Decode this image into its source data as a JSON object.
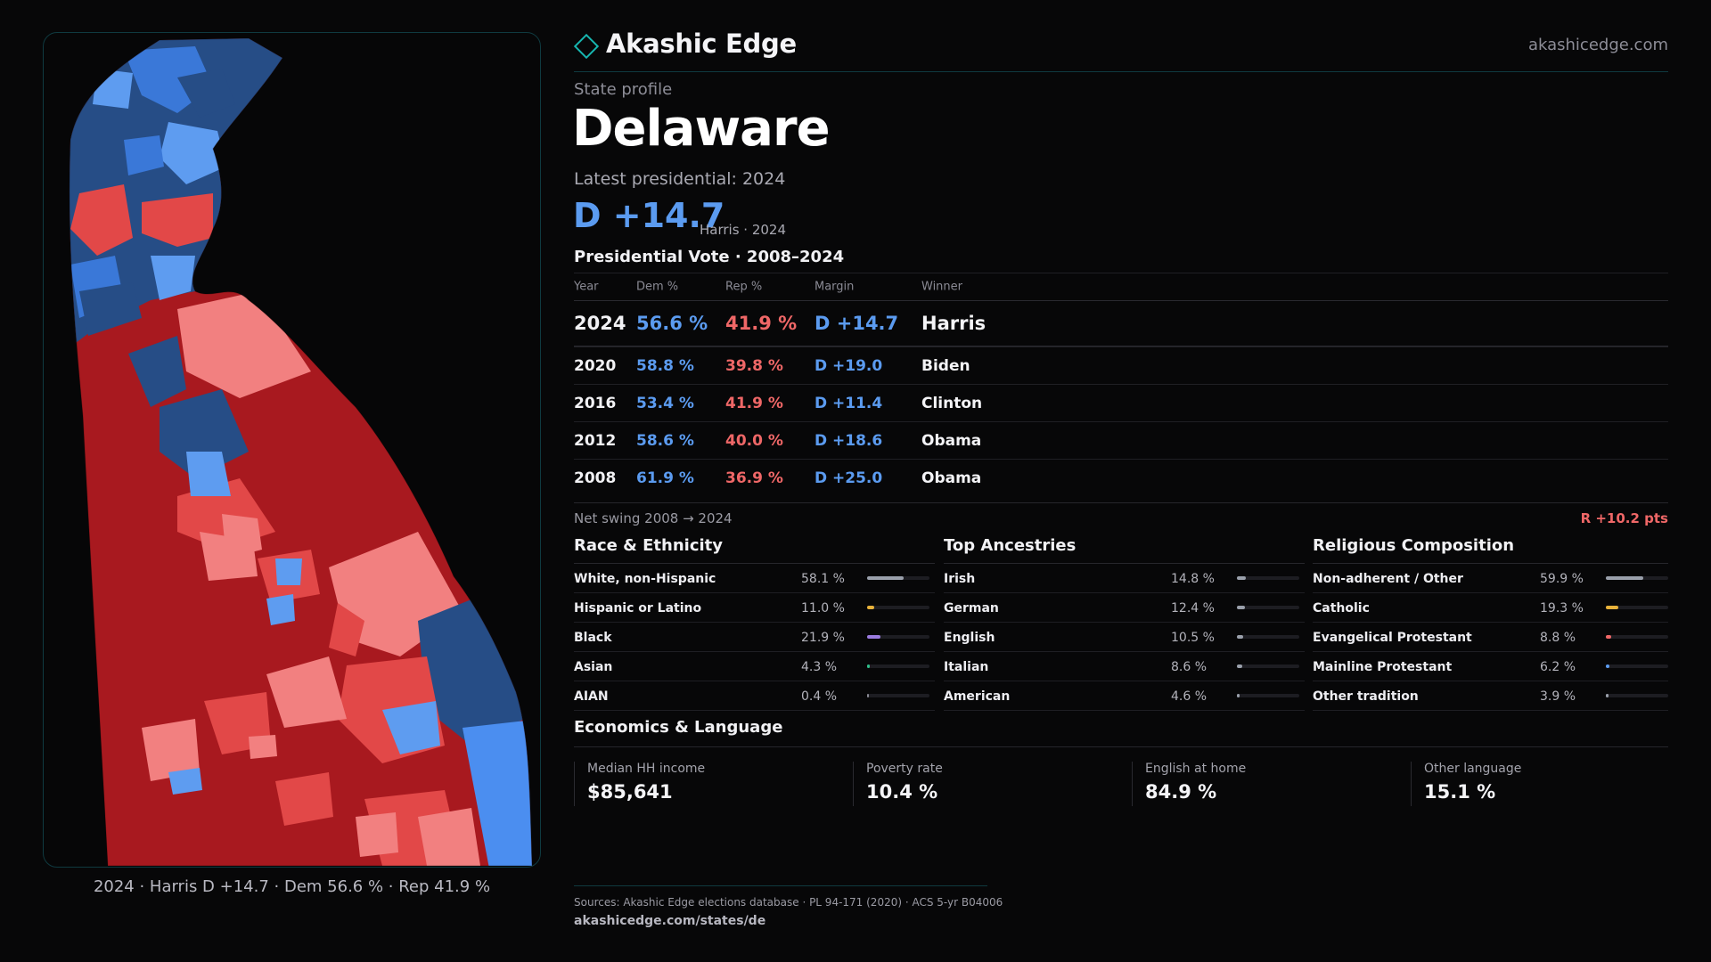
{
  "header": {
    "brand": "Akashic Edge",
    "site": "akashicedge.com",
    "accent_color": "#17b6b0"
  },
  "profile": {
    "eyebrow": "State profile",
    "state": "Delaware",
    "latest_label": "Latest presidential: 2024",
    "latest_margin": "D +14.7",
    "latest_sub": "Harris · 2024"
  },
  "map": {
    "caption": "2024 · Harris D +14.7 · Dem 56.6 % · Rep 41.9 %",
    "colors": {
      "safe_d": "#264d86",
      "likely_d": "#3a78d8",
      "lean_d": "#5e9cf0",
      "lean_r": "#f28080",
      "likely_r": "#e24848",
      "safe_r": "#a8191f"
    }
  },
  "vote_history": {
    "title": "Presidential Vote · 2008–2024",
    "columns": [
      "Year",
      "Dem %",
      "Rep %",
      "Margin",
      "Winner"
    ],
    "rows": [
      {
        "year": "2024",
        "dem": "56.6 %",
        "rep": "41.9 %",
        "margin": "D +14.7",
        "winner": "Harris"
      },
      {
        "year": "2020",
        "dem": "58.8 %",
        "rep": "39.8 %",
        "margin": "D +19.0",
        "winner": "Biden"
      },
      {
        "year": "2016",
        "dem": "53.4 %",
        "rep": "41.9 %",
        "margin": "D +11.4",
        "winner": "Clinton"
      },
      {
        "year": "2012",
        "dem": "58.6 %",
        "rep": "40.0 %",
        "margin": "D +18.6",
        "winner": "Obama"
      },
      {
        "year": "2008",
        "dem": "61.9 %",
        "rep": "36.9 %",
        "margin": "D +25.0",
        "winner": "Obama"
      }
    ],
    "dem_color": "#5b9bf0",
    "rep_color": "#ef6767"
  },
  "swing": {
    "label": "Net swing 2008 → 2024",
    "value": "R +10.2 pts"
  },
  "race": {
    "title": "Race & Ethnicity",
    "items": [
      {
        "label": "White, non-Hispanic",
        "pct": "58.1 %",
        "value": 58.1,
        "color": "#9aa0ab"
      },
      {
        "label": "Hispanic or Latino",
        "pct": "11.0 %",
        "value": 11.0,
        "color": "#e8b23a"
      },
      {
        "label": "Black",
        "pct": "21.9 %",
        "value": 21.9,
        "color": "#9b7be0"
      },
      {
        "label": "Asian",
        "pct": "4.3 %",
        "value": 4.3,
        "color": "#2fbf8a"
      },
      {
        "label": "AIAN",
        "pct": "0.4 %",
        "value": 0.4,
        "color": "#8a8a94"
      }
    ]
  },
  "ancestry": {
    "title": "Top Ancestries",
    "items": [
      {
        "label": "Irish",
        "pct": "14.8 %",
        "value": 14.8,
        "color": "#9aa0ab"
      },
      {
        "label": "German",
        "pct": "12.4 %",
        "value": 12.4,
        "color": "#9aa0ab"
      },
      {
        "label": "English",
        "pct": "10.5 %",
        "value": 10.5,
        "color": "#9aa0ab"
      },
      {
        "label": "Italian",
        "pct": "8.6 %",
        "value": 8.6,
        "color": "#9aa0ab"
      },
      {
        "label": "American",
        "pct": "4.6 %",
        "value": 4.6,
        "color": "#9aa0ab"
      }
    ]
  },
  "religion": {
    "title": "Religious Composition",
    "items": [
      {
        "label": "Non-adherent / Other",
        "pct": "59.9 %",
        "value": 59.9,
        "color": "#9aa0ab"
      },
      {
        "label": "Catholic",
        "pct": "19.3 %",
        "value": 19.3,
        "color": "#e8b23a"
      },
      {
        "label": "Evangelical Protestant",
        "pct": "8.8 %",
        "value": 8.8,
        "color": "#ef6767"
      },
      {
        "label": "Mainline Protestant",
        "pct": "6.2 %",
        "value": 6.2,
        "color": "#5b9bf0"
      },
      {
        "label": "Other tradition",
        "pct": "3.9 %",
        "value": 3.9,
        "color": "#9aa0ab"
      }
    ]
  },
  "economics": {
    "title": "Economics & Language",
    "cards": [
      {
        "label": "Median HH income",
        "value": "$85,641"
      },
      {
        "label": "Poverty rate",
        "value": "10.4 %"
      },
      {
        "label": "English at home",
        "value": "84.9 %"
      },
      {
        "label": "Other language",
        "value": "15.1 %"
      }
    ]
  },
  "footer": {
    "sources": "Sources: Akashic Edge elections database · PL 94-171 (2020) · ACS 5-yr B04006",
    "url": "akashicedge.com/states/de"
  }
}
